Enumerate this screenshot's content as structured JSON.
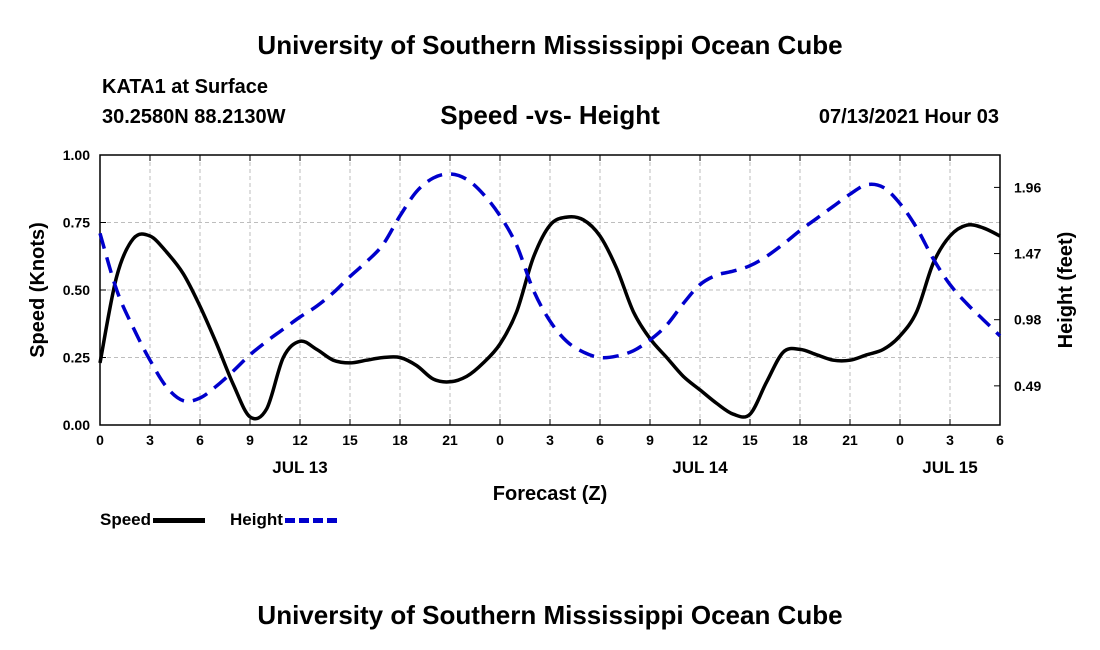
{
  "header": {
    "title": "University of Southern Mississippi Ocean Cube",
    "station": "KATA1 at Surface",
    "coordinates": "30.2580N  88.2130W",
    "timestamp": "07/13/2021 Hour 03"
  },
  "footer": {
    "title": "University of Southern Mississippi Ocean Cube"
  },
  "chart_data": {
    "type": "line",
    "title": "Speed -vs- Height",
    "xlabel": "Forecast (Z)",
    "ylabel_left": "Speed (Knots)",
    "ylabel_right": "Height (feet)",
    "x_range_hours": [
      0,
      54
    ],
    "x_tick_labels": [
      "0",
      "3",
      "6",
      "9",
      "12",
      "15",
      "18",
      "21",
      "0",
      "3",
      "6",
      "9",
      "12",
      "15",
      "18",
      "21",
      "0",
      "3",
      "6"
    ],
    "date_labels": [
      {
        "hour": 12,
        "label": "JUL 13"
      },
      {
        "hour": 36,
        "label": "JUL 14"
      },
      {
        "hour": 51,
        "label": "JUL 15"
      }
    ],
    "ylim_left": [
      0,
      1
    ],
    "yticks_left": [
      "0.00",
      "0.25",
      "0.50",
      "0.75",
      "1.00"
    ],
    "ylim_right": [
      0.2,
      2.2
    ],
    "yticks_right": [
      {
        "value": 0.49,
        "label": "0.49"
      },
      {
        "value": 0.98,
        "label": "0.98"
      },
      {
        "value": 1.47,
        "label": "1.47"
      },
      {
        "value": 1.96,
        "label": "1.96"
      }
    ],
    "grid": true,
    "series": [
      {
        "name": "Speed",
        "axis": "left",
        "color": "#000000",
        "style": "solid",
        "points": [
          [
            0,
            0.23
          ],
          [
            1,
            0.55
          ],
          [
            2,
            0.69
          ],
          [
            3,
            0.7
          ],
          [
            4,
            0.64
          ],
          [
            5,
            0.56
          ],
          [
            6,
            0.44
          ],
          [
            7,
            0.3
          ],
          [
            8,
            0.15
          ],
          [
            9,
            0.03
          ],
          [
            10,
            0.06
          ],
          [
            11,
            0.25
          ],
          [
            12,
            0.31
          ],
          [
            13,
            0.28
          ],
          [
            14,
            0.24
          ],
          [
            15,
            0.23
          ],
          [
            16,
            0.24
          ],
          [
            17,
            0.25
          ],
          [
            18,
            0.25
          ],
          [
            19,
            0.22
          ],
          [
            20,
            0.17
          ],
          [
            21,
            0.16
          ],
          [
            22,
            0.18
          ],
          [
            23,
            0.23
          ],
          [
            24,
            0.3
          ],
          [
            25,
            0.42
          ],
          [
            26,
            0.62
          ],
          [
            27,
            0.74
          ],
          [
            28,
            0.77
          ],
          [
            29,
            0.76
          ],
          [
            30,
            0.7
          ],
          [
            31,
            0.58
          ],
          [
            32,
            0.42
          ],
          [
            33,
            0.32
          ],
          [
            34,
            0.25
          ],
          [
            35,
            0.18
          ],
          [
            36,
            0.13
          ],
          [
            37,
            0.08
          ],
          [
            38,
            0.04
          ],
          [
            39,
            0.04
          ],
          [
            40,
            0.16
          ],
          [
            41,
            0.27
          ],
          [
            42,
            0.28
          ],
          [
            43,
            0.26
          ],
          [
            44,
            0.24
          ],
          [
            45,
            0.24
          ],
          [
            46,
            0.26
          ],
          [
            47,
            0.28
          ],
          [
            48,
            0.33
          ],
          [
            49,
            0.42
          ],
          [
            50,
            0.6
          ],
          [
            51,
            0.7
          ],
          [
            52,
            0.74
          ],
          [
            53,
            0.73
          ],
          [
            54,
            0.7
          ]
        ]
      },
      {
        "name": "Height",
        "axis": "right",
        "color": "#0000cc",
        "style": "dashed",
        "points": [
          [
            0,
            1.62
          ],
          [
            1,
            1.2
          ],
          [
            2,
            0.92
          ],
          [
            3,
            0.68
          ],
          [
            4,
            0.48
          ],
          [
            5,
            0.38
          ],
          [
            6,
            0.4
          ],
          [
            7,
            0.49
          ],
          [
            8,
            0.6
          ],
          [
            9,
            0.72
          ],
          [
            10,
            0.82
          ],
          [
            11,
            0.91
          ],
          [
            12,
            1.0
          ],
          [
            13,
            1.08
          ],
          [
            14,
            1.18
          ],
          [
            15,
            1.3
          ],
          [
            16,
            1.41
          ],
          [
            17,
            1.54
          ],
          [
            18,
            1.75
          ],
          [
            19,
            1.93
          ],
          [
            20,
            2.03
          ],
          [
            21,
            2.06
          ],
          [
            22,
            2.02
          ],
          [
            23,
            1.91
          ],
          [
            24,
            1.75
          ],
          [
            25,
            1.53
          ],
          [
            26,
            1.2
          ],
          [
            27,
            0.97
          ],
          [
            28,
            0.82
          ],
          [
            29,
            0.74
          ],
          [
            30,
            0.7
          ],
          [
            31,
            0.71
          ],
          [
            32,
            0.75
          ],
          [
            33,
            0.83
          ],
          [
            34,
            0.94
          ],
          [
            35,
            1.1
          ],
          [
            36,
            1.24
          ],
          [
            37,
            1.31
          ],
          [
            38,
            1.34
          ],
          [
            39,
            1.38
          ],
          [
            40,
            1.45
          ],
          [
            41,
            1.54
          ],
          [
            42,
            1.64
          ],
          [
            43,
            1.73
          ],
          [
            44,
            1.82
          ],
          [
            45,
            1.91
          ],
          [
            46,
            1.98
          ],
          [
            47,
            1.96
          ],
          [
            48,
            1.84
          ],
          [
            49,
            1.66
          ],
          [
            50,
            1.43
          ],
          [
            51,
            1.24
          ],
          [
            52,
            1.1
          ],
          [
            53,
            0.98
          ],
          [
            54,
            0.86
          ]
        ]
      }
    ]
  },
  "legend": {
    "speed_label": "Speed",
    "height_label": "Height"
  }
}
